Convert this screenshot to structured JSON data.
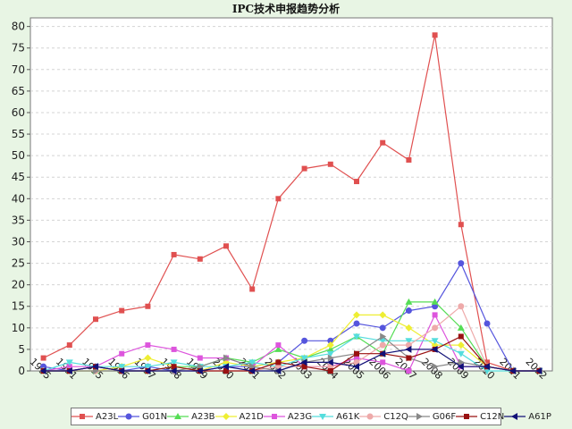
{
  "chart_data": {
    "type": "line",
    "title": "IPC技术申报趋势分析",
    "xlabel": "",
    "ylabel": "",
    "ylim": [
      0,
      82
    ],
    "yticks": [
      0,
      5,
      10,
      15,
      20,
      25,
      30,
      35,
      40,
      45,
      50,
      55,
      60,
      65,
      70,
      75,
      80
    ],
    "grid": true,
    "legend_position": "bottom",
    "categories": [
      "1995",
      "1991",
      "1995",
      "1996",
      "1997",
      "1998",
      "1999",
      "2000",
      "2001",
      "2002",
      "2003",
      "2004",
      "2005",
      "2006",
      "2007",
      "2008",
      "2009",
      "2010",
      "2011",
      "2012"
    ],
    "series": [
      {
        "name": "A23L",
        "color": "#e05050",
        "marker": "square",
        "values": [
          3,
          6,
          12,
          14,
          15,
          27,
          26,
          29,
          19,
          40,
          47,
          48,
          44,
          53,
          49,
          78,
          34,
          2,
          0,
          0
        ]
      },
      {
        "name": "G01N",
        "color": "#5555dd",
        "marker": "circle",
        "values": [
          1,
          0,
          1,
          0,
          1,
          0,
          0,
          1,
          1,
          2,
          7,
          7,
          11,
          10,
          14,
          15,
          25,
          11,
          0,
          0
        ]
      },
      {
        "name": "A23B",
        "color": "#55dd55",
        "marker": "triangle",
        "values": [
          0,
          0,
          0,
          0,
          0,
          1,
          1,
          3,
          2,
          5,
          3,
          5,
          8,
          4,
          16,
          16,
          10,
          1,
          0,
          0
        ]
      },
      {
        "name": "A21D",
        "color": "#eeee33",
        "marker": "diamond",
        "values": [
          0,
          0,
          0,
          1,
          3,
          1,
          0,
          2,
          1,
          2,
          3,
          6,
          13,
          13,
          10,
          6,
          6,
          1,
          0,
          0
        ]
      },
      {
        "name": "A23G",
        "color": "#dd55dd",
        "marker": "square",
        "values": [
          0,
          1,
          1,
          4,
          6,
          5,
          3,
          3,
          1,
          6,
          1,
          1,
          3,
          2,
          0,
          13,
          1,
          1,
          0,
          0
        ]
      },
      {
        "name": "A61K",
        "color": "#55dddd",
        "marker": "triangle-down",
        "values": [
          0,
          2,
          1,
          1,
          1,
          2,
          1,
          1,
          2,
          1,
          3,
          4,
          8,
          7,
          7,
          7,
          4,
          0,
          0,
          0
        ]
      },
      {
        "name": "C12Q",
        "color": "#eeaaaa",
        "marker": "circle",
        "values": [
          0,
          0,
          0,
          0,
          0,
          0,
          0,
          0,
          0,
          1,
          1,
          1,
          2,
          6,
          6,
          10,
          15,
          1,
          0,
          0
        ]
      },
      {
        "name": "G06F",
        "color": "#888888",
        "marker": "triangle-right",
        "values": [
          0,
          0,
          0,
          0,
          0,
          0,
          1,
          3,
          1,
          0,
          2,
          3,
          4,
          8,
          3,
          1,
          2,
          1,
          0,
          0
        ]
      },
      {
        "name": "C12N",
        "color": "#991111",
        "marker": "square",
        "values": [
          0,
          0,
          1,
          0,
          0,
          1,
          0,
          0,
          0,
          2,
          1,
          0,
          4,
          4,
          3,
          5,
          8,
          1,
          0,
          0
        ]
      },
      {
        "name": "A61P",
        "color": "#111177",
        "marker": "triangle-left",
        "values": [
          0,
          0,
          1,
          0,
          0,
          0,
          0,
          1,
          0,
          0,
          2,
          2,
          1,
          4,
          5,
          5,
          1,
          1,
          0,
          0
        ]
      }
    ]
  }
}
